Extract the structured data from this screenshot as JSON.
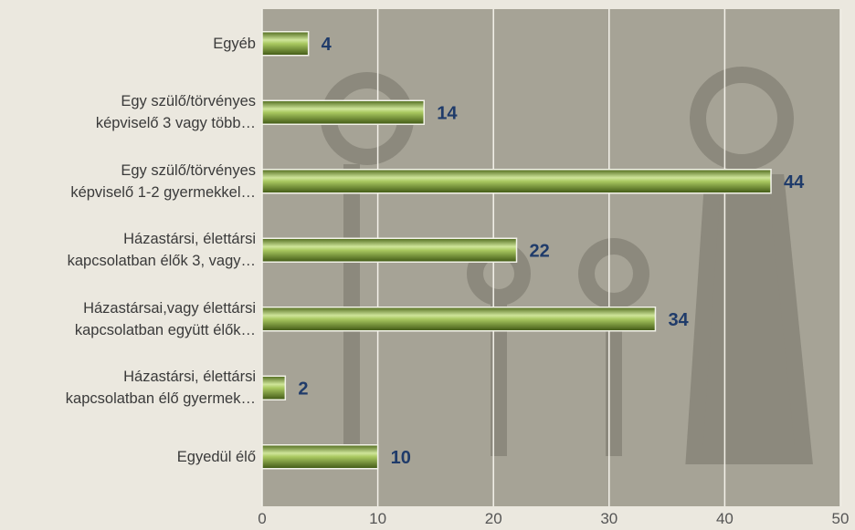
{
  "chart_data": {
    "type": "bar",
    "orientation": "horizontal",
    "categories": [
      "Egyéb",
      "Egy szülő/törvényes\nképviselő 3 vagy több…",
      "Egy szülő/törvényes\nképviselő 1-2 gyermekkel…",
      "Házastársi, élettársi\nkapcsolatban élők 3, vagy…",
      "Házastársai,vagy élettársi\nkapcsolatban együtt élők…",
      "Házastársi, élettársi\nkapcsolatban élő gyermek…",
      "Egyedül élő"
    ],
    "values": [
      4,
      14,
      44,
      22,
      34,
      2,
      10
    ],
    "color": "#8aa83c",
    "xlim": [
      0,
      50
    ],
    "xticks": [
      0,
      10,
      20,
      30,
      40,
      50
    ],
    "grid": true
  }
}
